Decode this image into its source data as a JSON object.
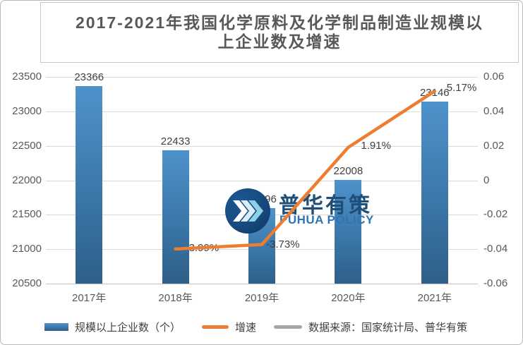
{
  "title": {
    "text": "2017-2021年我国化学原料及化学制品制造业规模以上企业数及增速"
  },
  "watermark": {
    "cn": "普华有策",
    "en": "PUHUA POLICY"
  },
  "legend": {
    "items": [
      {
        "label": "规模以上企业数（个）"
      },
      {
        "label": "增速"
      },
      {
        "label": "数据来源：国家统计局、普华有策"
      }
    ]
  },
  "colors": {
    "bar_top": "#4E92CB",
    "bar_bottom": "#2E5F88",
    "line": "#ED7D31",
    "gridline": "#D9D9D9",
    "axis_text": "#595959",
    "data_label_text": "#404040",
    "source_swatch": "#A6A6A6",
    "watermark_circle": "#164A7F",
    "watermark_cn_text": "#1F4E79",
    "watermark_en_text": "#2E75B6"
  },
  "chart_data": {
    "type": "combo-bar-line",
    "title": "2017-2021年我国化学原料及化学制品制造业规模以上企业数及增速",
    "categories": [
      "2017年",
      "2018年",
      "2019年",
      "2020年",
      "2021年"
    ],
    "series": [
      {
        "name": "规模以上企业数（个）",
        "type": "bar",
        "axis": "left",
        "values": [
          23366,
          22433,
          21596,
          22008,
          23146
        ],
        "data_labels": [
          "23366",
          "22433",
          "21596",
          "22008",
          "23146"
        ]
      },
      {
        "name": "增速",
        "type": "line",
        "axis": "right",
        "values": [
          null,
          -0.0399,
          -0.0373,
          0.0191,
          0.0517
        ],
        "data_labels": [
          null,
          "-3.99%",
          "-3.73%",
          "1.91%",
          "5.17%"
        ]
      }
    ],
    "left_axis": {
      "min": 20500,
      "max": 23500,
      "step": 500,
      "tick_labels": [
        "23500",
        "23000",
        "22500",
        "22000",
        "21500",
        "21000",
        "20500"
      ]
    },
    "right_axis": {
      "min": -0.06,
      "max": 0.06,
      "step": 0.02,
      "tick_labels": [
        "0.06",
        "0.04",
        "0.02",
        "0",
        "-0.02",
        "-0.04",
        "-0.06"
      ]
    },
    "grid": true,
    "legend_position": "bottom",
    "source": "数据来源：国家统计局、普华有策"
  }
}
